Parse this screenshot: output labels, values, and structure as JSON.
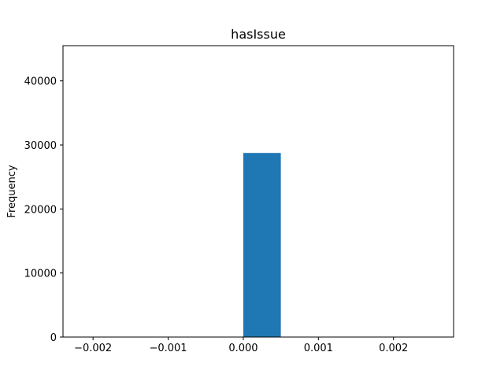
{
  "chart_data": {
    "type": "bar",
    "title": "hasIssue",
    "xlabel": "",
    "ylabel": "Frequency",
    "bins": [
      {
        "x0": 0.0,
        "x1": 0.0005,
        "value": 28750
      }
    ],
    "xlim": [
      -0.0024,
      0.0028
    ],
    "ylim": [
      0,
      45500
    ],
    "xticks": [
      {
        "value": -0.002,
        "label": "−0.002"
      },
      {
        "value": -0.001,
        "label": "−0.001"
      },
      {
        "value": 0.0,
        "label": "0.000"
      },
      {
        "value": 0.001,
        "label": "0.001"
      },
      {
        "value": 0.002,
        "label": "0.002"
      }
    ],
    "yticks": [
      {
        "value": 0,
        "label": "0"
      },
      {
        "value": 10000,
        "label": "10000"
      },
      {
        "value": 20000,
        "label": "20000"
      },
      {
        "value": 30000,
        "label": "30000"
      },
      {
        "value": 40000,
        "label": "40000"
      }
    ],
    "bar_color": "#1f77b4",
    "grid": false,
    "legend": "none"
  }
}
